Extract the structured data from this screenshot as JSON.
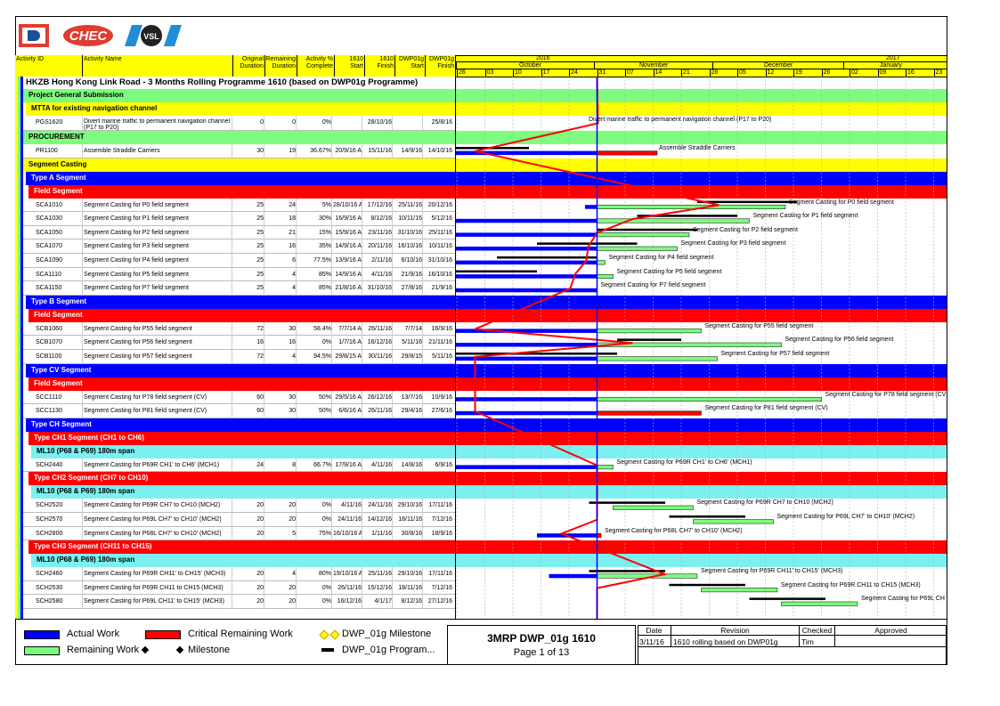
{
  "header": {
    "columns": {
      "activity_id": "Activity ID",
      "activity_name": "Activity Name",
      "orig_dur": [
        "Original",
        "Duration"
      ],
      "rem_dur": [
        "Remaining",
        "Duration"
      ],
      "pct": [
        "Activity %",
        "Complete"
      ],
      "start_1610": [
        "1610",
        "Start"
      ],
      "finish_1610": [
        "1610",
        "Finish"
      ],
      "dwp_start": [
        "DWP01g",
        "Start"
      ],
      "dwp_finish": [
        "DWP01g",
        "Finish"
      ]
    },
    "timeline": {
      "years": [
        "2016",
        "2017"
      ],
      "months": [
        "October",
        "November",
        "December",
        "January"
      ],
      "days": [
        "26",
        "03",
        "10",
        "17",
        "24",
        "31",
        "07",
        "14",
        "21",
        "28",
        "05",
        "12",
        "19",
        "26",
        "02",
        "09",
        "16",
        "23"
      ]
    }
  },
  "title": "HKZB Hong Kong Link Road - 3 Months Rolling Programme 1610 (based on DWP01g Programme)",
  "rows": [
    {
      "kind": "band",
      "color": "#7dfc7d",
      "text": "Project General Submission",
      "dark": true
    },
    {
      "kind": "band",
      "color": "#ffff00",
      "text": "MTTA for existing navigation channel",
      "dark": true,
      "indent": 1
    },
    {
      "kind": "act",
      "id": "PGS1620",
      "name": "Divert marine traffic to permanent navigation channel (P17 to P20)",
      "od": "0",
      "rd": "0",
      "pct": "0%",
      "s": "",
      "f": "28/10/16",
      "ds": "",
      "df": "25/8/16",
      "label": "Divert marine traffic to permanent navigation channel (P17 to P20)",
      "tall": true
    },
    {
      "kind": "band",
      "color": "#7dfc7d",
      "text": "PROCUREMENT",
      "dark": true
    },
    {
      "kind": "act",
      "id": "PR1100",
      "name": "Assemble Straddle Carriers",
      "od": "30",
      "rd": "19",
      "pct": "36.67%",
      "s": "20/9/16 A",
      "f": "15/11/16",
      "ds": "14/9/16",
      "df": "14/10/16",
      "label": "Assemble Straddle Carriers"
    },
    {
      "kind": "band",
      "color": "#ffff00",
      "text": "Segment Casting",
      "dark": true
    },
    {
      "kind": "band",
      "color": "#0000ff",
      "text": "Type A Segment",
      "indent": 1
    },
    {
      "kind": "band",
      "color": "#ff0000",
      "text": "Field Segment",
      "indent": 2
    },
    {
      "kind": "act",
      "id": "SCA1010",
      "name": "Segment Casting for P0 field segment",
      "od": "25",
      "rd": "24",
      "pct": "5%",
      "s": "28/10/16 A",
      "f": "17/12/16",
      "ds": "25/11/16",
      "df": "20/12/16",
      "label": "Segment Casting for P0 field segment"
    },
    {
      "kind": "act",
      "id": "SCA1030",
      "name": "Segment Casting for P1 field segment",
      "od": "25",
      "rd": "18",
      "pct": "30%",
      "s": "16/9/16 A",
      "f": "8/12/16",
      "ds": "10/11/16",
      "df": "5/12/16",
      "label": "Segment Casting for P1 field segment"
    },
    {
      "kind": "act",
      "id": "SCA1050",
      "name": "Segment Casting for P2 field segment",
      "od": "25",
      "rd": "21",
      "pct": "15%",
      "s": "15/9/16 A",
      "f": "23/11/16",
      "ds": "31/10/16",
      "df": "25/11/16",
      "label": "Segment Casting for P2 field segment"
    },
    {
      "kind": "act",
      "id": "SCA1070",
      "name": "Segment Casting for P3 field segment",
      "od": "25",
      "rd": "16",
      "pct": "35%",
      "s": "14/9/16 A",
      "f": "20/11/16",
      "ds": "16/10/16",
      "df": "10/11/16",
      "label": "Segment Casting for P3 field segment"
    },
    {
      "kind": "act",
      "id": "SCA1090",
      "name": "Segment Casting for P4 field segment",
      "od": "25",
      "rd": "6",
      "pct": "77.5%",
      "s": "13/9/16 A",
      "f": "2/11/16",
      "ds": "6/10/16",
      "df": "31/10/16",
      "label": "Segment Casting for P4 field segment"
    },
    {
      "kind": "act",
      "id": "SCA1110",
      "name": "Segment Casting for P5 field segment",
      "od": "25",
      "rd": "4",
      "pct": "85%",
      "s": "14/9/16 A",
      "f": "4/11/16",
      "ds": "21/9/16",
      "df": "16/10/16",
      "label": "Segment Casting for P5 field segment"
    },
    {
      "kind": "act",
      "id": "SCA1150",
      "name": "Segment Casting for P7 field segment",
      "od": "25",
      "rd": "4",
      "pct": "85%",
      "s": "21/8/16 A",
      "f": "31/10/16",
      "ds": "27/8/16",
      "df": "21/9/16",
      "label": "Segment Casting for P7 field segment"
    },
    {
      "kind": "band",
      "color": "#0000ff",
      "text": "Type B Segment",
      "indent": 1
    },
    {
      "kind": "band",
      "color": "#ff0000",
      "text": "Field Segment",
      "indent": 2
    },
    {
      "kind": "act",
      "id": "SCB1060",
      "name": "Segment Casting for P55 field segment",
      "od": "72",
      "rd": "30",
      "pct": "58.4%",
      "s": "7/7/14 A",
      "f": "26/11/16",
      "ds": "7/7/14",
      "df": "16/9/16",
      "label": "Segment Casting for P55 field segment"
    },
    {
      "kind": "act",
      "id": "SCB1070",
      "name": "Segment Casting for P56 field segment",
      "od": "16",
      "rd": "16",
      "pct": "0%",
      "s": "1/7/16 A",
      "f": "16/12/16",
      "ds": "5/11/16",
      "df": "21/11/16",
      "label": "Segment Casting for P56 field segment"
    },
    {
      "kind": "act",
      "id": "SCB1100",
      "name": "Segment Casting for P57 field segment",
      "od": "72",
      "rd": "4",
      "pct": "94.5%",
      "s": "29/8/15 A",
      "f": "30/11/16",
      "ds": "29/8/15",
      "df": "5/11/16",
      "label": "Segment Casting for P57 field segment"
    },
    {
      "kind": "band",
      "color": "#0000ff",
      "text": "Type CV Segment",
      "indent": 1
    },
    {
      "kind": "band",
      "color": "#ff0000",
      "text": "Field Segment",
      "indent": 2
    },
    {
      "kind": "act",
      "id": "SCC1110",
      "name": "Segment Casting for P78 field segment (CV)",
      "od": "60",
      "rd": "30",
      "pct": "50%",
      "s": "29/5/16 A",
      "f": "26/12/16",
      "ds": "13/7/16",
      "df": "10/9/16",
      "label": "Segment Casting for P78 field segment (CV"
    },
    {
      "kind": "act",
      "id": "SCC1130",
      "name": "Segment Casting for P81 field segment (CV)",
      "od": "60",
      "rd": "30",
      "pct": "50%",
      "s": "6/6/16 A",
      "f": "26/11/16",
      "ds": "29/4/16",
      "df": "27/6/16",
      "label": "Segment Casting for P81 field segment (CV)"
    },
    {
      "kind": "band",
      "color": "#0000ff",
      "text": "Type CH Segment",
      "indent": 1
    },
    {
      "kind": "band",
      "color": "#ff0000",
      "text": "Type CH1 Segment (CH1 to CH6)",
      "indent": 2
    },
    {
      "kind": "band",
      "color": "#7cf0f0",
      "text": "ML10 (P68 & P69) 180m span",
      "dark": true,
      "indent": 3
    },
    {
      "kind": "act",
      "id": "SCH2440",
      "name": "Segment Casting for P69R CH1' to CH6' (MCH1)",
      "od": "24",
      "rd": "8",
      "pct": "66.7%",
      "s": "17/9/16 A",
      "f": "4/11/16",
      "ds": "14/8/16",
      "df": "6/9/16",
      "label": "Segment Casting for P69R CH1' to CH6' (MCH1)"
    },
    {
      "kind": "band",
      "color": "#ff0000",
      "text": "Type CH2 Segment (CH7 to CH10)",
      "indent": 2
    },
    {
      "kind": "band",
      "color": "#7cf0f0",
      "text": "ML10 (P68 & P69) 180m span",
      "dark": true,
      "indent": 3
    },
    {
      "kind": "act",
      "id": "SCH2520",
      "name": "Segment Casting for P69R CH7 to CH10 (MCH2)",
      "od": "20",
      "rd": "20",
      "pct": "0%",
      "s": "4/11/16",
      "f": "24/11/16",
      "ds": "29/10/16",
      "df": "17/11/16",
      "label": "Segment Casting for P69R CH7 to CH10 (MCH2)"
    },
    {
      "kind": "act",
      "id": "SCH2570",
      "name": "Segment Casting for P69L CH7' to CH10' (MCH2)",
      "od": "20",
      "rd": "20",
      "pct": "0%",
      "s": "24/11/16",
      "f": "14/12/16",
      "ds": "18/11/16",
      "df": "7/12/16",
      "label": "Segment Casting for P69L CH7' to CH10' (MCH2)"
    },
    {
      "kind": "act",
      "id": "SCH2800",
      "name": "Segment Casting for P68L CH7' to CH10' (MCH2)",
      "od": "20",
      "rd": "5",
      "pct": "75%",
      "s": "16/10/16 A",
      "f": "1/11/16",
      "ds": "30/8/16",
      "df": "18/9/16",
      "label": "Segment Casting for P68L CH7' to CH10' (MCH2)"
    },
    {
      "kind": "band",
      "color": "#ff0000",
      "text": "Type CH3 Segment (CH11 to CH15)",
      "indent": 2
    },
    {
      "kind": "band",
      "color": "#7cf0f0",
      "text": "ML10 (P68 & P69) 180m span",
      "dark": true,
      "indent": 3
    },
    {
      "kind": "act",
      "id": "SCH2460",
      "name": "Segment Casting for P69R CH11' to CH15' (MCH3)",
      "od": "20",
      "rd": "4",
      "pct": "80%",
      "s": "19/10/16 A",
      "f": "25/11/16",
      "ds": "29/10/16",
      "df": "17/11/16",
      "label": "Segment Casting for P69R CH11' to CH15' (MCH3)"
    },
    {
      "kind": "act",
      "id": "SCH2530",
      "name": "Segment Casting for P69R CH11 to CH15 (MCH3)",
      "od": "20",
      "rd": "20",
      "pct": "0%",
      "s": "26/11/16",
      "f": "15/12/16",
      "ds": "18/11/16",
      "df": "7/12/16",
      "label": "Segment Casting for P69R CH11 to CH15 (MCH3)"
    },
    {
      "kind": "act",
      "id": "SCH2580",
      "name": "Segment Casting for P69L CH11' to CH15' (MCH3)",
      "od": "20",
      "rd": "20",
      "pct": "0%",
      "s": "16/12/16",
      "f": "4/1/17",
      "ds": "8/12/16",
      "df": "27/12/16",
      "label": "Segment Casting for P69L CH"
    }
  ],
  "legend": {
    "actual": "Actual Work",
    "remaining": "Remaining Work",
    "critical": "Critical Remaining Work",
    "milestone": "Milestone",
    "dwp_milestone": "DWP_01g Milestone",
    "dwp_program": "DWP_01g Program..."
  },
  "footer": {
    "doc_title": "3MRP DWP_01g 1610",
    "page": "Page 1 of 13",
    "hdr_date": "Date",
    "hdr_revision": "Revision",
    "hdr_checked": "Checked",
    "hdr_approved": "Approved",
    "date": "3/11/16",
    "revision": "1610 rolling based on DWP01g",
    "checked": "Tim"
  },
  "colors": {
    "actual": "#0000ff",
    "remaining": "#7dfc7d",
    "critical": "#ff0000",
    "header": "#ffff00",
    "data_date_line": "#0000ff",
    "progress_line": "#ff0000"
  }
}
